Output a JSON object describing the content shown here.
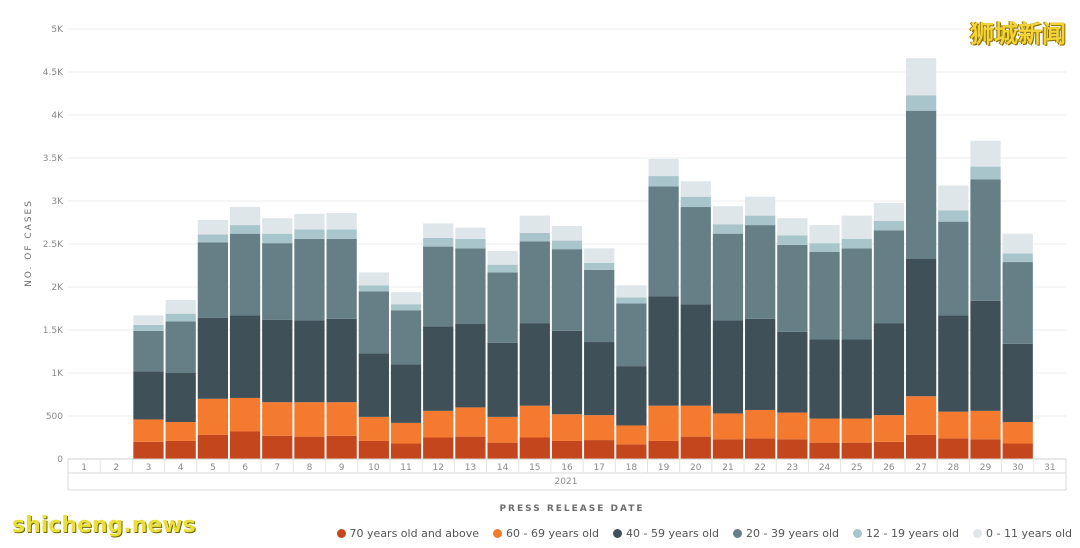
{
  "watermark_cn": "狮城新闻",
  "watermark_en": "shicheng.news",
  "chart_data": {
    "type": "bar",
    "stacked": true,
    "xlabel": "PRESS RELEASE DATE",
    "ylabel": "NO. OF CASES",
    "year_label": "2021",
    "ylim": [
      0,
      5000
    ],
    "yticks": [
      "0",
      "500",
      "1K",
      "1.5K",
      "2K",
      "2.5K",
      "3K",
      "3.5K",
      "4K",
      "4.5K",
      "5K"
    ],
    "legend_position": "bottom-right",
    "grid": true,
    "categories": [
      "1",
      "2",
      "3",
      "4",
      "5",
      "6",
      "7",
      "8",
      "9",
      "10",
      "11",
      "12",
      "13",
      "14",
      "15",
      "16",
      "17",
      "18",
      "19",
      "20",
      "21",
      "22",
      "23",
      "24",
      "25",
      "26",
      "27",
      "28",
      "29",
      "30",
      "31"
    ],
    "series": [
      {
        "name": "70 years old and above",
        "color": "#c4461c",
        "values": [
          0,
          0,
          200,
          210,
          280,
          320,
          270,
          260,
          270,
          210,
          180,
          250,
          260,
          190,
          250,
          210,
          220,
          170,
          210,
          260,
          230,
          240,
          230,
          190,
          190,
          200,
          280,
          240,
          230,
          180,
          0
        ]
      },
      {
        "name": "60 - 69 years old",
        "color": "#f47a30",
        "values": [
          0,
          0,
          260,
          220,
          420,
          390,
          390,
          400,
          390,
          280,
          240,
          310,
          340,
          300,
          370,
          310,
          290,
          220,
          410,
          360,
          300,
          330,
          310,
          280,
          280,
          310,
          450,
          310,
          330,
          250,
          0
        ]
      },
      {
        "name": "40 - 59 years old",
        "color": "#3f5058",
        "values": [
          0,
          0,
          560,
          570,
          940,
          960,
          960,
          950,
          970,
          740,
          680,
          980,
          970,
          860,
          960,
          970,
          850,
          690,
          1270,
          1180,
          1080,
          1060,
          940,
          920,
          920,
          1070,
          1600,
          1120,
          1280,
          910,
          0
        ]
      },
      {
        "name": "20 - 39 years old",
        "color": "#667f87",
        "values": [
          0,
          0,
          470,
          600,
          880,
          950,
          890,
          950,
          930,
          720,
          630,
          930,
          880,
          820,
          950,
          950,
          840,
          730,
          1280,
          1130,
          1010,
          1090,
          1010,
          1020,
          1060,
          1080,
          1720,
          1090,
          1410,
          950,
          0
        ]
      },
      {
        "name": "12 - 19 years old",
        "color": "#a9c5cc",
        "values": [
          0,
          0,
          70,
          90,
          90,
          100,
          110,
          110,
          110,
          70,
          70,
          100,
          110,
          90,
          100,
          100,
          80,
          70,
          120,
          120,
          110,
          110,
          110,
          100,
          110,
          110,
          180,
          130,
          150,
          100,
          0
        ]
      },
      {
        "name": "0 - 11 years old",
        "color": "#dfe6e9",
        "values": [
          0,
          0,
          110,
          160,
          170,
          210,
          180,
          180,
          190,
          150,
          140,
          170,
          130,
          160,
          200,
          170,
          170,
          140,
          200,
          180,
          210,
          220,
          200,
          210,
          270,
          210,
          430,
          290,
          300,
          230,
          0
        ]
      }
    ]
  }
}
